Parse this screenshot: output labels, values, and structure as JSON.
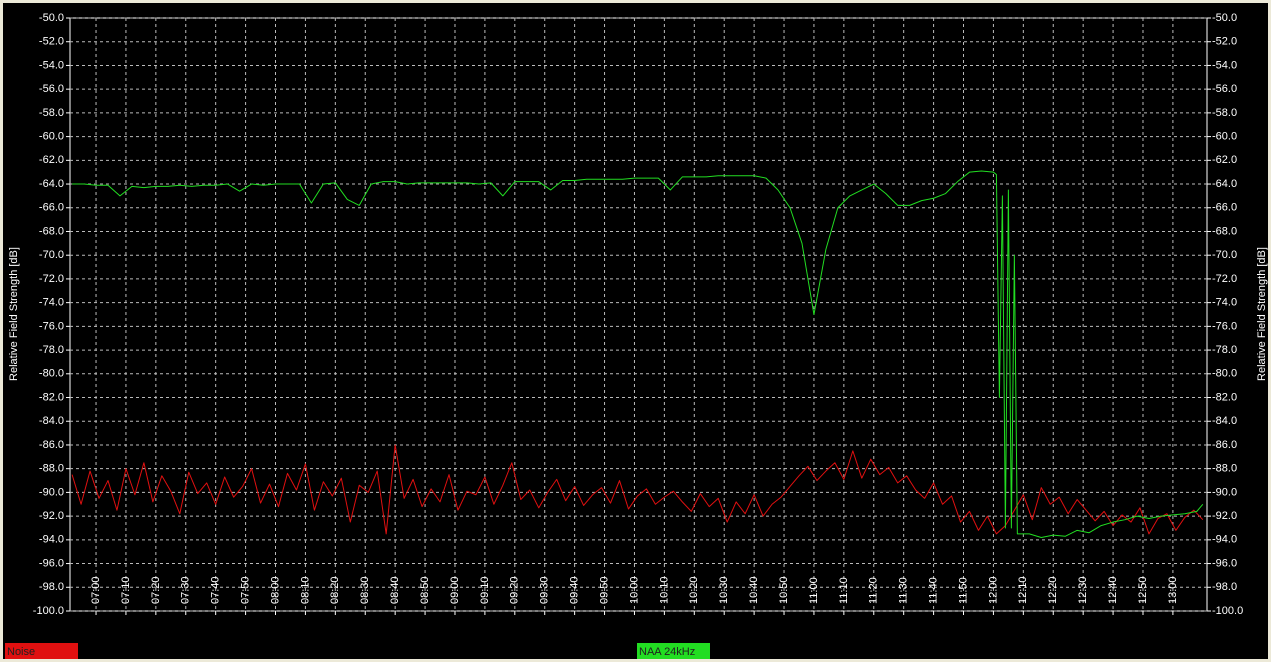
{
  "chart_data": {
    "type": "line",
    "y_label": "Relative Field Strength [dB]",
    "y2_label": "Relative Field Strength [dB]",
    "xlim": [
      411.3,
      791.4
    ],
    "xticks": [
      {
        "value": 420,
        "label": "07:00"
      },
      {
        "value": 430,
        "label": "07:10"
      },
      {
        "value": 440,
        "label": "07:20"
      },
      {
        "value": 450,
        "label": "07:30"
      },
      {
        "value": 460,
        "label": "07:40"
      },
      {
        "value": 470,
        "label": "07:50"
      },
      {
        "value": 480,
        "label": "08:00"
      },
      {
        "value": 490,
        "label": "08:10"
      },
      {
        "value": 500,
        "label": "08:20"
      },
      {
        "value": 510,
        "label": "08:30"
      },
      {
        "value": 520,
        "label": "08:40"
      },
      {
        "value": 530,
        "label": "08:50"
      },
      {
        "value": 540,
        "label": "09:00"
      },
      {
        "value": 550,
        "label": "09:10"
      },
      {
        "value": 560,
        "label": "09:20"
      },
      {
        "value": 570,
        "label": "09:30"
      },
      {
        "value": 580,
        "label": "09:40"
      },
      {
        "value": 590,
        "label": "09:50"
      },
      {
        "value": 600,
        "label": "10:00"
      },
      {
        "value": 610,
        "label": "10:10"
      },
      {
        "value": 620,
        "label": "10:20"
      },
      {
        "value": 630,
        "label": "10:30"
      },
      {
        "value": 640,
        "label": "10:40"
      },
      {
        "value": 650,
        "label": "10:50"
      },
      {
        "value": 660,
        "label": "11:00"
      },
      {
        "value": 670,
        "label": "11:10"
      },
      {
        "value": 680,
        "label": "11:20"
      },
      {
        "value": 690,
        "label": "11:30"
      },
      {
        "value": 700,
        "label": "11:40"
      },
      {
        "value": 710,
        "label": "11:50"
      },
      {
        "value": 720,
        "label": "12:00"
      },
      {
        "value": 730,
        "label": "12:10"
      },
      {
        "value": 740,
        "label": "12:20"
      },
      {
        "value": 750,
        "label": "12:30"
      },
      {
        "value": 760,
        "label": "12:40"
      },
      {
        "value": 770,
        "label": "12:50"
      },
      {
        "value": 780,
        "label": "13:00"
      }
    ],
    "ylim": [
      -100,
      -50
    ],
    "yticks": [
      {
        "value": -50,
        "label": "-50.0"
      },
      {
        "value": -52,
        "label": "-52.0"
      },
      {
        "value": -54,
        "label": "-54.0"
      },
      {
        "value": -56,
        "label": "-56.0"
      },
      {
        "value": -58,
        "label": "-58.0"
      },
      {
        "value": -60,
        "label": "-60.0"
      },
      {
        "value": -62,
        "label": "-62.0"
      },
      {
        "value": -64,
        "label": "-64.0"
      },
      {
        "value": -66,
        "label": "-66.0"
      },
      {
        "value": -68,
        "label": "-68.0"
      },
      {
        "value": -70,
        "label": "-70.0"
      },
      {
        "value": -72,
        "label": "-72.0"
      },
      {
        "value": -74,
        "label": "-74.0"
      },
      {
        "value": -76,
        "label": "-76.0"
      },
      {
        "value": -78,
        "label": "-78.0"
      },
      {
        "value": -80,
        "label": "-80.0"
      },
      {
        "value": -82,
        "label": "-82.0"
      },
      {
        "value": -84,
        "label": "-84.0"
      },
      {
        "value": -86,
        "label": "-86.0"
      },
      {
        "value": -88,
        "label": "-88.0"
      },
      {
        "value": -90,
        "label": "-90.0"
      },
      {
        "value": -92,
        "label": "-92.0"
      },
      {
        "value": -94,
        "label": "-94.0"
      },
      {
        "value": -96,
        "label": "-96.0"
      },
      {
        "value": -98,
        "label": "-98.0"
      },
      {
        "value": -100,
        "label": "-100.0"
      }
    ],
    "y2lim": [
      -100,
      -50
    ],
    "y2ticks": [
      {
        "value": -50,
        "label": "-50.0"
      },
      {
        "value": -52,
        "label": "-52.0"
      },
      {
        "value": -54,
        "label": "-54.0"
      },
      {
        "value": -56,
        "label": "-56.0"
      },
      {
        "value": -58,
        "label": "-58.0"
      },
      {
        "value": -60,
        "label": "-60.0"
      },
      {
        "value": -62,
        "label": "-62.0"
      },
      {
        "value": -64,
        "label": "-64.0"
      },
      {
        "value": -66,
        "label": "-66.0"
      },
      {
        "value": -68,
        "label": "-68.0"
      },
      {
        "value": -70,
        "label": "-70.0"
      },
      {
        "value": -72,
        "label": "-72.0"
      },
      {
        "value": -74,
        "label": "-74.0"
      },
      {
        "value": -76,
        "label": "-76.0"
      },
      {
        "value": -78,
        "label": "-78.0"
      },
      {
        "value": -80,
        "label": "-80.0"
      },
      {
        "value": -82,
        "label": "-82.0"
      },
      {
        "value": -84,
        "label": "-84.0"
      },
      {
        "value": -86,
        "label": "-86.0"
      },
      {
        "value": -88,
        "label": "-88.0"
      },
      {
        "value": -90,
        "label": "-90.0"
      },
      {
        "value": -92,
        "label": "-92.0"
      },
      {
        "value": -94,
        "label": "-94.0"
      },
      {
        "value": -96,
        "label": "-96.0"
      },
      {
        "value": -98,
        "label": "-98.0"
      },
      {
        "value": -100,
        "label": "-100.0"
      }
    ],
    "grid": true,
    "series": [
      {
        "name": "Noise",
        "color": "#e01010",
        "x": [
          412,
          415,
          418,
          421,
          424,
          427,
          430,
          433,
          436,
          439,
          442,
          445,
          448,
          451,
          454,
          457,
          460,
          463,
          466,
          469,
          472,
          475,
          478,
          481,
          484,
          487,
          490,
          493,
          496,
          499,
          502,
          505,
          508,
          511,
          514,
          517,
          520,
          523,
          526,
          529,
          532,
          535,
          538,
          541,
          544,
          547,
          550,
          553,
          556,
          559,
          562,
          565,
          568,
          571,
          574,
          577,
          580,
          583,
          586,
          589,
          592,
          595,
          598,
          601,
          604,
          607,
          610,
          613,
          616,
          619,
          622,
          625,
          628,
          631,
          634,
          637,
          640,
          643,
          646,
          649,
          652,
          655,
          658,
          661,
          664,
          667,
          670,
          673,
          676,
          679,
          682,
          685,
          688,
          691,
          694,
          697,
          700,
          703,
          706,
          709,
          712,
          715,
          718,
          721,
          724,
          727,
          730,
          733,
          736,
          739,
          742,
          745,
          748,
          751,
          754,
          757,
          760,
          763,
          766,
          769,
          772,
          775,
          778,
          781,
          784,
          787,
          790
        ],
        "values": [
          -88.5,
          -91.0,
          -88.2,
          -90.5,
          -89.0,
          -91.5,
          -88.0,
          -90.2,
          -87.5,
          -90.8,
          -88.6,
          -89.9,
          -91.8,
          -88.3,
          -90.1,
          -89.2,
          -91.0,
          -88.7,
          -90.4,
          -89.5,
          -88.0,
          -90.9,
          -89.3,
          -91.2,
          -88.4,
          -89.8,
          -87.6,
          -91.5,
          -89.1,
          -90.3,
          -88.8,
          -92.5,
          -89.4,
          -90.0,
          -88.2,
          -93.5,
          -86.0,
          -90.5,
          -88.9,
          -91.2,
          -89.7,
          -90.8,
          -88.5,
          -91.5,
          -89.9,
          -90.2,
          -88.7,
          -91.0,
          -89.4,
          -87.5,
          -90.6,
          -89.8,
          -91.3,
          -90.0,
          -88.9,
          -90.7,
          -89.5,
          -91.1,
          -90.2,
          -89.6,
          -90.9,
          -89.0,
          -91.4,
          -90.3,
          -89.7,
          -91.0,
          -90.4,
          -89.9,
          -90.8,
          -91.6,
          -90.1,
          -91.2,
          -90.5,
          -92.5,
          -90.8,
          -91.8,
          -90.2,
          -92.0,
          -91.0,
          -90.4,
          -89.5,
          -88.6,
          -87.8,
          -89.0,
          -88.2,
          -87.5,
          -88.9,
          -86.5,
          -88.8,
          -87.2,
          -88.5,
          -87.9,
          -89.2,
          -88.6,
          -89.8,
          -90.5,
          -89.2,
          -91.0,
          -90.3,
          -92.5,
          -91.6,
          -93.2,
          -92.0,
          -93.5,
          -92.8,
          -91.5,
          -90.2,
          -92.3,
          -89.6,
          -91.0,
          -90.4,
          -91.8,
          -90.6,
          -91.5,
          -92.4,
          -91.6,
          -92.8,
          -91.9,
          -92.5,
          -91.3,
          -93.5,
          -92.2,
          -91.8,
          -93.2,
          -92.1,
          -91.5,
          -92.3
        ]
      },
      {
        "name": "NAA 24kHz",
        "color": "#22dd22",
        "x": [
          412,
          416,
          420,
          424,
          428,
          432,
          436,
          440,
          444,
          448,
          452,
          456,
          460,
          464,
          468,
          472,
          476,
          480,
          484,
          488,
          492,
          496,
          500,
          504,
          508,
          512,
          516,
          520,
          524,
          528,
          532,
          536,
          540,
          544,
          548,
          552,
          556,
          560,
          564,
          568,
          572,
          576,
          580,
          584,
          588,
          592,
          596,
          600,
          604,
          608,
          612,
          616,
          620,
          624,
          628,
          632,
          636,
          640,
          644,
          648,
          652,
          656,
          660,
          664,
          668,
          672,
          676,
          680,
          684,
          688,
          692,
          696,
          700,
          704,
          708,
          712,
          716,
          720,
          721,
          722,
          723,
          724,
          725,
          726,
          727,
          728,
          732,
          736,
          740,
          744,
          748,
          752,
          756,
          760,
          764,
          768,
          772,
          776,
          780,
          784,
          788,
          790
        ],
        "values": [
          -64.0,
          -64.0,
          -64.1,
          -64.1,
          -65.0,
          -64.2,
          -64.3,
          -64.2,
          -64.2,
          -64.1,
          -64.2,
          -64.1,
          -64.1,
          -64.0,
          -64.6,
          -64.0,
          -64.1,
          -64.0,
          -64.0,
          -64.0,
          -65.6,
          -64.0,
          -63.9,
          -65.3,
          -65.8,
          -64.0,
          -63.8,
          -63.8,
          -64.0,
          -63.9,
          -63.9,
          -63.9,
          -63.9,
          -63.9,
          -64.0,
          -63.9,
          -65.0,
          -63.8,
          -63.8,
          -63.8,
          -64.5,
          -63.7,
          -63.7,
          -63.6,
          -63.6,
          -63.6,
          -63.6,
          -63.5,
          -63.5,
          -63.5,
          -64.5,
          -63.4,
          -63.4,
          -63.4,
          -63.3,
          -63.3,
          -63.3,
          -63.3,
          -63.5,
          -64.5,
          -66.0,
          -69.0,
          -75.0,
          -69.5,
          -66.0,
          -65.0,
          -64.5,
          -64.0,
          -64.8,
          -65.8,
          -65.8,
          -65.4,
          -65.2,
          -64.8,
          -63.8,
          -63.0,
          -62.9,
          -63.0,
          -63.2,
          -82.0,
          -65.0,
          -93.0,
          -64.5,
          -93.0,
          -70.0,
          -93.5,
          -93.5,
          -93.8,
          -93.6,
          -93.7,
          -93.2,
          -93.4,
          -92.8,
          -92.5,
          -92.3,
          -92.0,
          -92.2,
          -92.0,
          -91.9,
          -91.8,
          -91.6,
          -91.0
        ]
      }
    ]
  }
}
